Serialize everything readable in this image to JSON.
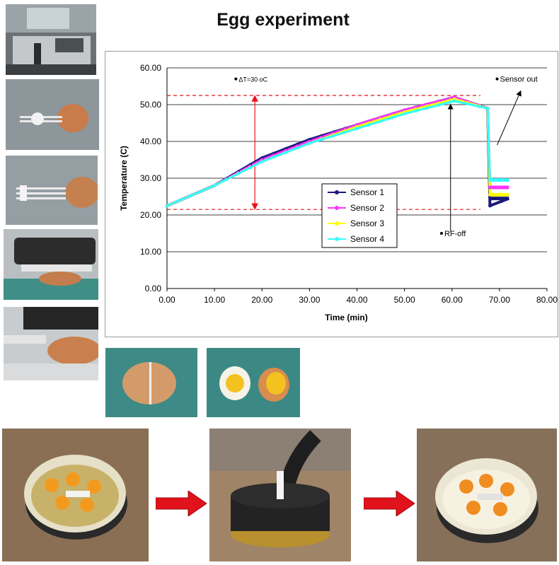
{
  "page": {
    "title": "Egg experiment"
  },
  "chart_data": {
    "type": "line",
    "title": "",
    "xlabel": "Time (min)",
    "ylabel": "Temperature (C)",
    "xlim": [
      0,
      80
    ],
    "ylim": [
      0,
      60
    ],
    "x_ticks": [
      "0.00",
      "10.00",
      "20.00",
      "30.00",
      "40.00",
      "50.00",
      "60.00",
      "70.00",
      "80.00"
    ],
    "y_ticks": [
      "0.00",
      "10.00",
      "20.00",
      "30.00",
      "40.00",
      "50.00",
      "60.00"
    ],
    "grid": "horizontal",
    "legend_position": "center-right",
    "series": [
      {
        "name": "Sensor 1",
        "color": "#1a1a7a",
        "marker": "diamond",
        "x": [
          0,
          10,
          20,
          30,
          40,
          50,
          60.5,
          67.5,
          68,
          72
        ],
        "y": [
          22.5,
          28,
          35.5,
          40.5,
          44.5,
          48.5,
          52,
          49,
          22.5,
          24.5
        ]
      },
      {
        "name": "Sensor 2",
        "color": "#ff33ff",
        "marker": "square",
        "x": [
          0,
          10,
          20,
          30,
          40,
          50,
          60.5,
          67.5,
          68,
          72
        ],
        "y": [
          22.5,
          28,
          35,
          40,
          44.5,
          48.5,
          52,
          49,
          27.5,
          27.5
        ]
      },
      {
        "name": "Sensor 3",
        "color": "#ffff00",
        "marker": "triangle",
        "x": [
          0,
          10,
          20,
          30,
          40,
          50,
          60.5,
          67.5,
          68,
          72
        ],
        "y": [
          22.5,
          28,
          34.5,
          39.5,
          44,
          48,
          51.5,
          49,
          25.5,
          25.5
        ]
      },
      {
        "name": "Sensor 4",
        "color": "#33ffff",
        "marker": "x",
        "x": [
          0,
          10,
          20,
          30,
          40,
          50,
          60.5,
          67.5,
          68,
          72
        ],
        "y": [
          22.5,
          28,
          34.5,
          39.5,
          43.5,
          47.5,
          51,
          49,
          29.5,
          29.5
        ]
      }
    ],
    "reference_lines": {
      "upper": 52.5,
      "lower": 21.5
    },
    "annotations": [
      {
        "text": "ΔT=30 oC",
        "x": 14.5,
        "y": 57
      },
      {
        "text": "Sensor out",
        "x": 69.5,
        "y": 57
      },
      {
        "text": "RF-off",
        "x": 57.8,
        "y": 15
      }
    ]
  }
}
